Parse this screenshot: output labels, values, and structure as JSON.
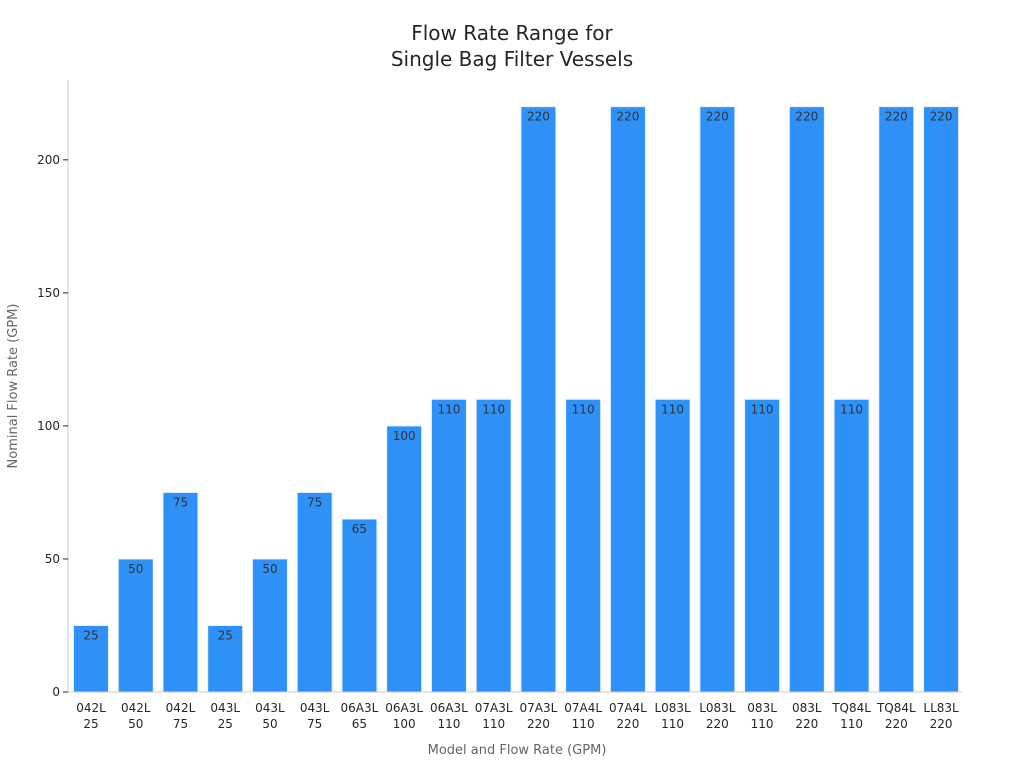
{
  "chart_data": {
    "type": "bar",
    "title": [
      "Flow Rate Range for",
      "Single Bag Filter Vessels"
    ],
    "xlabel": "Model and Flow Rate (GPM)",
    "ylabel": "Nominal Flow Rate (GPM)",
    "ylim": [
      0,
      230
    ],
    "yticks": [
      0,
      50,
      100,
      150,
      200
    ],
    "grid": false,
    "bar_color": "#2E91F8",
    "categories": [
      [
        "042L",
        "25"
      ],
      [
        "042L",
        "50"
      ],
      [
        "042L",
        "75"
      ],
      [
        "043L",
        "25"
      ],
      [
        "043L",
        "50"
      ],
      [
        "043L",
        "75"
      ],
      [
        "06A3L",
        "65"
      ],
      [
        "06A3L",
        "100"
      ],
      [
        "06A3L",
        "110"
      ],
      [
        "07A3L",
        "110"
      ],
      [
        "07A3L",
        "220"
      ],
      [
        "07A4L",
        "110"
      ],
      [
        "07A4L",
        "220"
      ],
      [
        "L083L",
        "110"
      ],
      [
        "L083L",
        "220"
      ],
      [
        "083L",
        "110"
      ],
      [
        "083L",
        "220"
      ],
      [
        "TQ84L",
        "110"
      ],
      [
        "TQ84L",
        "220"
      ],
      [
        "LL83L",
        "220"
      ]
    ],
    "values": [
      25,
      50,
      75,
      25,
      50,
      75,
      65,
      100,
      110,
      110,
      220,
      110,
      220,
      110,
      220,
      110,
      220,
      110,
      220,
      220
    ]
  }
}
